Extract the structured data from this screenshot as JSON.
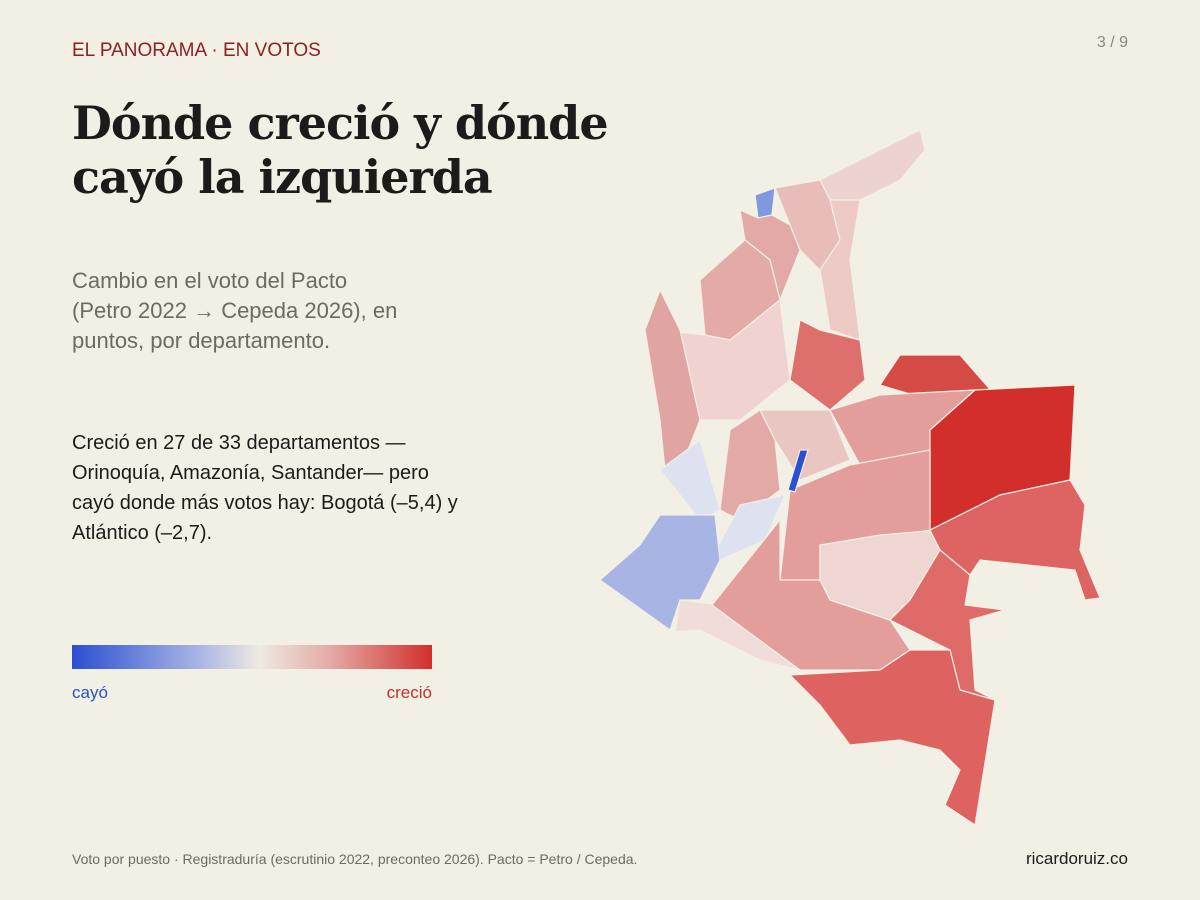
{
  "header": {
    "kicker": "EL PANORAMA · EN VOTOS",
    "page": "3 / 9"
  },
  "title": "Dónde creció y dónde cayó la izquierda",
  "subtitle": "Cambio en el voto del Pacto (Petro 2022 → Cepeda 2026), en puntos, por departamento.",
  "body": "Creció en 27 de 33 departamentos —Orinoquía, Amazonía, Santander— pero cayó donde más votos hay: Bogotá (–5,4) y Atlántico (–2,7).",
  "legend": {
    "low": "cayó",
    "high": "creció"
  },
  "footer": {
    "source": "Voto por puesto · Registraduría (escrutinio 2022, preconteo 2026). Pacto = Petro / Cepeda.",
    "credit": "ricardoruiz.co"
  }
}
